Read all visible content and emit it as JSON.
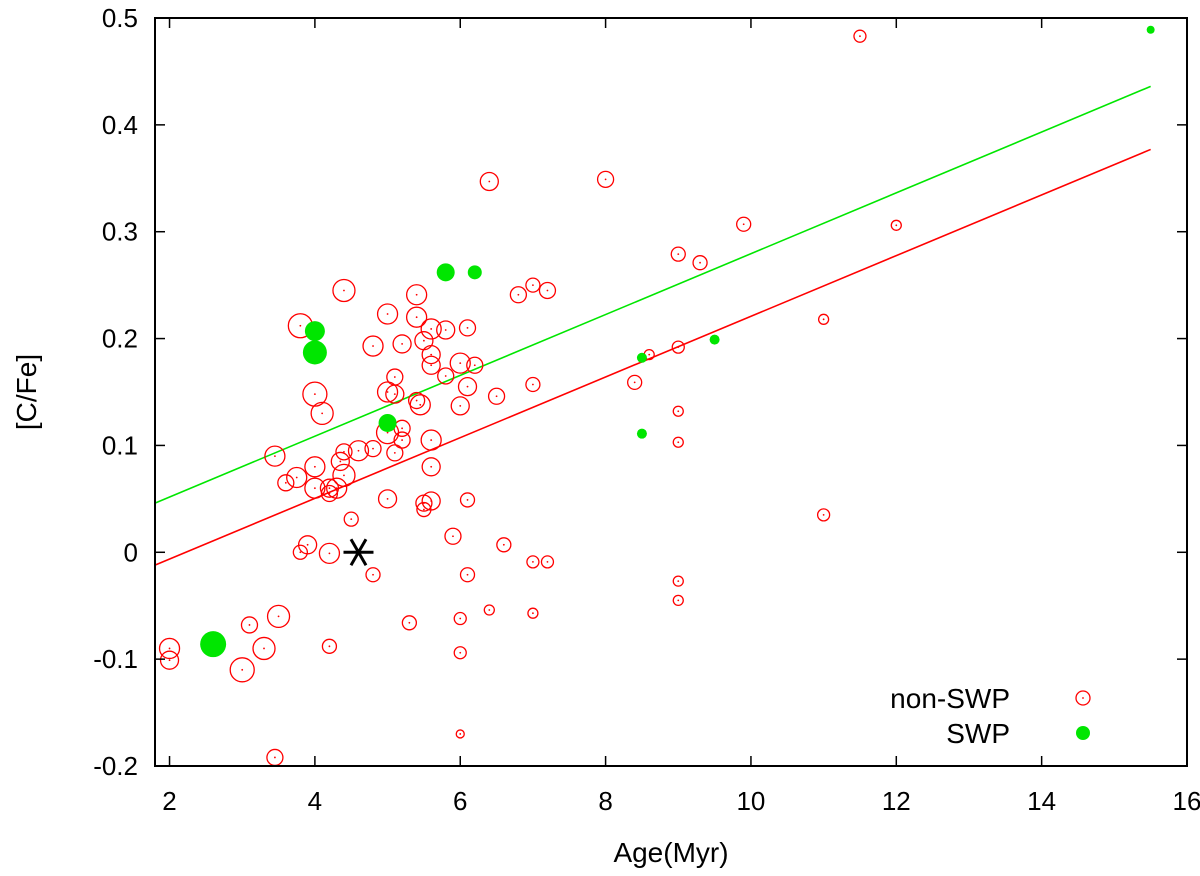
{
  "chart_data": {
    "type": "scatter",
    "xlabel": "Age(Myr)",
    "ylabel": "[C/Fe]",
    "xlim": [
      1.8,
      16
    ],
    "ylim": [
      -0.2,
      0.5
    ],
    "xticks": [
      2,
      4,
      6,
      8,
      10,
      12,
      14,
      16
    ],
    "yticks": [
      -0.2,
      -0.1,
      0,
      0.1,
      0.2,
      0.3,
      0.4,
      0.5
    ],
    "xtick_labels": [
      "2",
      "4",
      "6",
      "8",
      "10",
      "12",
      "14",
      "16"
    ],
    "ytick_labels": [
      "-0.2",
      "-0.1",
      "0",
      "0.1",
      "0.2",
      "0.3",
      "0.4",
      "0.5"
    ],
    "grid": false,
    "legend_position": "bottom-right",
    "colors": {
      "non_swp": "#ff0000",
      "swp": "#00e600",
      "sun": "#000000",
      "axis": "#000000"
    },
    "series": [
      {
        "name": "non-SWP",
        "style": "open-circle",
        "points": [
          [
            2.0,
            -0.09,
            10
          ],
          [
            2.0,
            -0.101,
            9
          ],
          [
            3.0,
            -0.11,
            12
          ],
          [
            3.1,
            -0.068,
            8
          ],
          [
            3.3,
            -0.09,
            11
          ],
          [
            3.5,
            -0.06,
            11
          ],
          [
            3.45,
            -0.192,
            8
          ],
          [
            3.45,
            0.09,
            10
          ],
          [
            3.6,
            0.065,
            8
          ],
          [
            3.8,
            0.212,
            12
          ],
          [
            3.75,
            0.07,
            10
          ],
          [
            3.8,
            0.0,
            7
          ],
          [
            3.9,
            0.007,
            9
          ],
          [
            4.0,
            0.148,
            12
          ],
          [
            4.0,
            0.08,
            10
          ],
          [
            4.0,
            0.06,
            10
          ],
          [
            4.1,
            0.13,
            11
          ],
          [
            4.2,
            0.06,
            9
          ],
          [
            4.2,
            0.055,
            8
          ],
          [
            4.2,
            -0.001,
            10
          ],
          [
            4.2,
            -0.088,
            7
          ],
          [
            4.3,
            0.06,
            10
          ],
          [
            4.35,
            0.085,
            9
          ],
          [
            4.4,
            0.245,
            11
          ],
          [
            4.4,
            0.072,
            11
          ],
          [
            4.4,
            0.094,
            8
          ],
          [
            4.5,
            0.031,
            7
          ],
          [
            4.6,
            0.095,
            10
          ],
          [
            4.8,
            0.193,
            10
          ],
          [
            4.8,
            0.097,
            8
          ],
          [
            4.8,
            -0.021,
            7
          ],
          [
            5.0,
            0.223,
            10
          ],
          [
            5.0,
            0.15,
            10
          ],
          [
            5.0,
            0.112,
            11
          ],
          [
            5.0,
            0.05,
            9
          ],
          [
            5.1,
            0.148,
            9
          ],
          [
            5.1,
            0.164,
            8
          ],
          [
            5.1,
            0.093,
            8
          ],
          [
            5.2,
            0.195,
            9
          ],
          [
            5.2,
            0.116,
            8
          ],
          [
            5.2,
            0.105,
            8
          ],
          [
            5.3,
            -0.066,
            7
          ],
          [
            5.4,
            0.241,
            10
          ],
          [
            5.4,
            0.22,
            10
          ],
          [
            5.5,
            0.198,
            9
          ],
          [
            5.45,
            0.138,
            10
          ],
          [
            5.4,
            0.142,
            8
          ],
          [
            5.5,
            0.046,
            8
          ],
          [
            5.5,
            0.04,
            7
          ],
          [
            5.6,
            0.209,
            10
          ],
          [
            5.6,
            0.185,
            9
          ],
          [
            5.6,
            0.175,
            9
          ],
          [
            5.6,
            0.105,
            10
          ],
          [
            5.6,
            0.08,
            9
          ],
          [
            5.6,
            0.048,
            9
          ],
          [
            5.8,
            0.208,
            9
          ],
          [
            5.8,
            0.165,
            8
          ],
          [
            5.9,
            0.015,
            8
          ],
          [
            6.0,
            0.177,
            10
          ],
          [
            6.0,
            0.137,
            9
          ],
          [
            6.0,
            -0.062,
            6
          ],
          [
            6.0,
            -0.094,
            6
          ],
          [
            6.0,
            -0.17,
            4
          ],
          [
            6.1,
            0.21,
            8
          ],
          [
            6.1,
            0.155,
            9
          ],
          [
            6.1,
            0.049,
            7
          ],
          [
            6.1,
            -0.021,
            7
          ],
          [
            6.2,
            0.175,
            8
          ],
          [
            6.4,
            0.347,
            9
          ],
          [
            6.4,
            -0.054,
            5
          ],
          [
            6.5,
            0.146,
            8
          ],
          [
            6.6,
            0.007,
            7
          ],
          [
            6.8,
            0.241,
            8
          ],
          [
            7.0,
            0.25,
            7
          ],
          [
            7.0,
            0.157,
            7
          ],
          [
            7.0,
            -0.009,
            6
          ],
          [
            7.0,
            -0.057,
            5
          ],
          [
            7.2,
            0.245,
            8
          ],
          [
            7.2,
            -0.009,
            6
          ],
          [
            8.0,
            0.349,
            8
          ],
          [
            8.4,
            0.159,
            7
          ],
          [
            8.6,
            0.185,
            5
          ],
          [
            9.0,
            0.279,
            7
          ],
          [
            9.0,
            0.192,
            6
          ],
          [
            9.0,
            0.132,
            5
          ],
          [
            9.0,
            0.103,
            5
          ],
          [
            9.0,
            -0.027,
            5
          ],
          [
            9.0,
            -0.045,
            5
          ],
          [
            9.3,
            0.271,
            7
          ],
          [
            9.9,
            0.307,
            7
          ],
          [
            11.0,
            0.218,
            5
          ],
          [
            11.0,
            0.035,
            6
          ],
          [
            11.5,
            0.483,
            6
          ],
          [
            12.0,
            0.306,
            5
          ]
        ]
      },
      {
        "name": "SWP",
        "style": "filled-circle",
        "points": [
          [
            2.6,
            -0.086,
            13
          ],
          [
            4.0,
            0.207,
            10
          ],
          [
            4.0,
            0.187,
            12
          ],
          [
            5.0,
            0.121,
            9
          ],
          [
            5.8,
            0.262,
            9
          ],
          [
            6.2,
            0.262,
            7
          ],
          [
            8.5,
            0.182,
            5
          ],
          [
            8.5,
            0.111,
            5
          ],
          [
            9.5,
            0.199,
            5
          ],
          [
            15.5,
            0.489,
            4
          ]
        ]
      }
    ],
    "fit_lines": [
      {
        "name": "non-SWP fit",
        "x": [
          1.8,
          15.5
        ],
        "y": [
          -0.012,
          0.377
        ]
      },
      {
        "name": "SWP fit",
        "x": [
          1.8,
          15.5
        ],
        "y": [
          0.046,
          0.436
        ]
      }
    ],
    "sun": {
      "x": 4.6,
      "y": 0.0,
      "marker": "asterisk"
    },
    "legend": [
      {
        "label": "non-SWP",
        "style": "open-circle"
      },
      {
        "label": "SWP",
        "style": "filled-circle"
      }
    ]
  }
}
